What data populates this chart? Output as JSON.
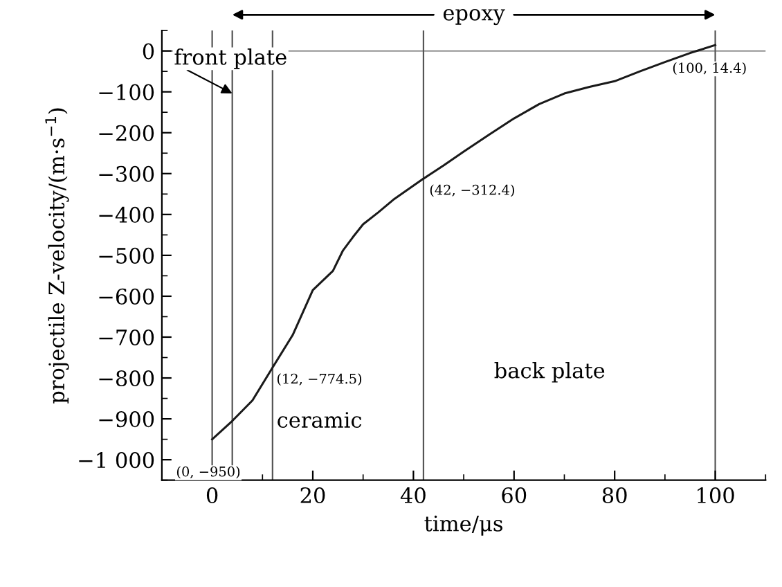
{
  "chart_data": {
    "type": "line",
    "xlabel": "time/μs",
    "ylabel": "projectile Z-velocity/(m·s$^{−1}$)",
    "x": [
      0,
      4,
      8,
      12,
      16,
      20,
      24,
      26,
      28,
      30,
      33,
      36,
      39,
      42,
      46,
      50,
      55,
      60,
      65,
      70,
      75,
      80,
      85,
      90,
      95,
      100
    ],
    "series": [
      {
        "color": "#1a1a1a",
        "values": [
          -950,
          -905,
          -855,
          -774.5,
          -695,
          -585,
          -538,
          -488,
          -455,
          -424,
          -395,
          -364,
          -338,
          -312.4,
          -280,
          -246,
          -205,
          -165,
          -130,
          -104,
          -88,
          -74,
          -50,
          -27,
          -5,
          14.4
        ]
      }
    ],
    "xlim": [
      -10,
      110
    ],
    "xticks": [
      0,
      20,
      40,
      60,
      80,
      100
    ],
    "ylim": [
      -1050,
      50
    ],
    "yticks": [
      0,
      {
        "value": -100,
        "label": "−100"
      },
      {
        "value": -200,
        "label": "−200"
      },
      {
        "value": -300,
        "label": "−300"
      },
      {
        "value": -400,
        "label": "−400"
      },
      {
        "value": -500,
        "label": "−500"
      },
      {
        "value": -600,
        "label": "−600"
      },
      {
        "value": -700,
        "label": "−700"
      },
      {
        "value": -800,
        "label": "−800"
      },
      {
        "value": -900,
        "label": "−900"
      },
      {
        "value": -1000,
        "label": "−1 000"
      }
    ],
    "ref_lines": [
      {
        "axis": "y",
        "value": 0,
        "color": "#999999"
      },
      {
        "axis": "x",
        "value": 0,
        "color": "#555555"
      },
      {
        "axis": "x",
        "value": 4,
        "color": "#555555"
      },
      {
        "axis": "x",
        "value": 12,
        "color": "#555555"
      },
      {
        "axis": "x",
        "value": 42,
        "color": "#555555"
      },
      {
        "axis": "x",
        "value": 100,
        "color": "#555555"
      }
    ],
    "annotations": [
      {
        "text": "(0, −950)",
        "x": 0,
        "y": -950
      },
      {
        "text": "(12, −774.5)",
        "x": 12,
        "y": -774.5
      },
      {
        "text": "(42, −312.4)",
        "x": 42,
        "y": -312.4
      },
      {
        "text": "(100, 14.4)",
        "x": 100,
        "y": 14.4
      },
      "front plate",
      "ceramic",
      "back plate",
      "epoxy"
    ],
    "grid": false,
    "legend": false,
    "marker": "none",
    "line_style": "solid"
  }
}
